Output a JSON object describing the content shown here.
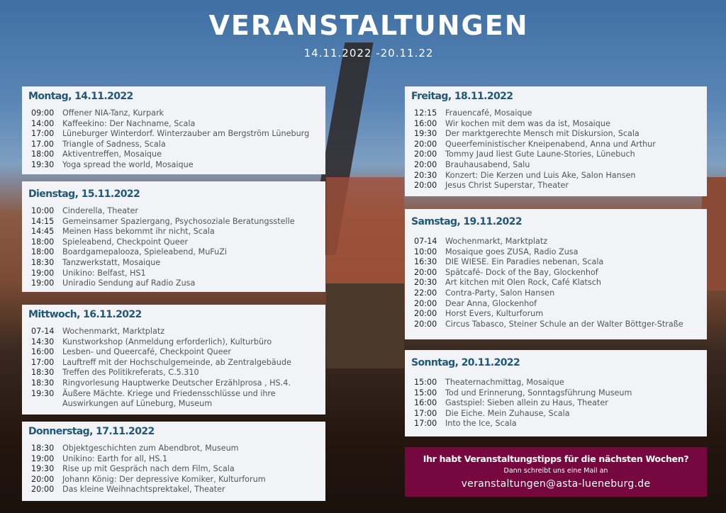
{
  "header": {
    "title": "VERANSTALTUNGEN",
    "date_range": "14.11.2022 -20.11.22"
  },
  "days": [
    {
      "label": "Montag, 14.11.2022",
      "events": [
        {
          "time": "09:00",
          "text": "Offener NIA-Tanz, Kurpark"
        },
        {
          "time": "14:00",
          "text": "Kaffeekino: Der Nachname, Scala"
        },
        {
          "time": "17:00",
          "text": "Lüneburger Winterdorf. Winterzauber am Bergström Lüneburg"
        },
        {
          "time": "17.00",
          "text": "Triangle of Sadness, Scala"
        },
        {
          "time": "18:00",
          "text": "Aktiventreffen, Mosaique"
        },
        {
          "time": "19:30",
          "text": "Yoga spread the world, Mosaique"
        }
      ]
    },
    {
      "label": "Dienstag, 15.11.2022",
      "events": [
        {
          "time": "10:00",
          "text": "Cinderella, Theater"
        },
        {
          "time": "14:15",
          "text": "Gemeinsamer Spaziergang, Psychosoziale Beratungsstelle"
        },
        {
          "time": "14:45",
          "text": "Meinen Hass bekommt ihr nicht, Scala"
        },
        {
          "time": "18:00",
          "text": "Spieleabend, Checkpoint Queer"
        },
        {
          "time": "18:00",
          "text": "Boardgamepalooza, Spieleabend, MuFuZi"
        },
        {
          "time": "18:30",
          "text": "Tanzwerkstatt, Mosaique"
        },
        {
          "time": "19:00",
          "text": "Unikino: Belfast, HS1"
        },
        {
          "time": "19:00",
          "text": "Uniradio Sendung auf Radio Zusa"
        }
      ]
    },
    {
      "label": "Mittwoch, 16.11.2022",
      "events": [
        {
          "time": "07-14",
          "text": "Wochenmarkt, Marktplatz"
        },
        {
          "time": "14:30",
          "text": "Kunstworkshop (Anmeldung erforderlich), Kulturbüro"
        },
        {
          "time": "16:00",
          "text": "Lesben- und Queercafé, Checkpoint Queer"
        },
        {
          "time": "17:00",
          "text": "Lauftreff mit der Hochschulgemeinde, ab Zentralgebäude"
        },
        {
          "time": "18:30",
          "text": "Treffen des Politikreferats, C.5.310"
        },
        {
          "time": "18:30",
          "text": "Ringvorlesung Hauptwerke Deutscher Erzählprosa , HS.4."
        },
        {
          "time": "19:30",
          "text": "Äußere Mächte. Kriege und Friedensschlüsse und ihre Auswirkungen auf Lüneburg, Museum"
        }
      ]
    },
    {
      "label": "Donnerstag, 17.11.2022",
      "events": [
        {
          "time": "18:30",
          "text": "Objektgeschichten zum Abendbrot, Museum"
        },
        {
          "time": "19:00",
          "text": "Unikino: Earth for all, HS.1"
        },
        {
          "time": "19:30",
          "text": "Rise up mit Gespräch nach dem Film, Scala"
        },
        {
          "time": "20:00",
          "text": "Johann König: Der depressive Komiker, Kulturforum"
        },
        {
          "time": "20:00",
          "text": "Das kleine Weihnachtsprektakel, Theater"
        }
      ]
    },
    {
      "label": "Freitag, 18.11.2022",
      "events": [
        {
          "time": "12:15",
          "text": "Frauencafé, Mosaique"
        },
        {
          "time": "16:00",
          "text": "Wir kochen mit dem was da ist, Mosaique"
        },
        {
          "time": "19:30",
          "text": "Der marktgerechte Mensch mit Diskursion, Scala"
        },
        {
          "time": "20:00",
          "text": "Queerfeministischer Kneipenabend, Anna und Arthur"
        },
        {
          "time": "20:00",
          "text": "Tommy Jaud liest Gute Laune-Stories, Lünebuch"
        },
        {
          "time": "20:00",
          "text": "Brauhausabend, Salu"
        },
        {
          "time": "20:30",
          "text": "Konzert: Die Kerzen und Luis Ake, Salon Hansen"
        },
        {
          "time": "20:00",
          "text": "Jesus Christ Superstar, Theater"
        }
      ]
    },
    {
      "label": "Samstag, 19.11.2022",
      "events": [
        {
          "time": "07-14",
          "text": "Wochenmarkt, Marktplatz"
        },
        {
          "time": "10:00",
          "text": "Mosaique goes ZUSA, Radio Zusa"
        },
        {
          "time": "16:30",
          "text": "DIE WIESE. Ein Paradies nebenan, Scala"
        },
        {
          "time": "20:00",
          "text": "Spätcafé- Dock of the Bay, Glockenhof"
        },
        {
          "time": "20:30",
          "text": "Art kitchen mit Olen Rock, Café Klatsch"
        },
        {
          "time": "22:00",
          "text": "Contra-Party, Salon Hansen"
        },
        {
          "time": "20:00",
          "text": "Dear Anna, Glockenhof"
        },
        {
          "time": "20:00",
          "text": "Horst Evers, Kulturforum"
        },
        {
          "time": "20:00",
          "text": "Circus Tabasco, Steiner Schule an der Walter Böttger-Straße"
        }
      ]
    },
    {
      "label": "Sonntag, 20.11.2022",
      "events": [
        {
          "time": "15:00",
          "text": "Theaternachmittag, Mosaique"
        },
        {
          "time": "15:00",
          "text": "Tod und Erinnerung, Sonntagsführung Museum"
        },
        {
          "time": "16:00",
          "text": "Gastspiel: Sieben allein zu Haus, Theater"
        },
        {
          "time": "17:00",
          "text": "Die Eiche. Mein Zuhause, Scala"
        },
        {
          "time": "17:00",
          "text": "Into the Ice, Scala"
        }
      ]
    }
  ],
  "tip": {
    "headline": "Ihr habt Veranstaltungstipps für die nächsten Wochen?",
    "subline": "Dann schreibt uns eine Mail an",
    "email": "veranstaltungen@asta-lueneburg.de"
  },
  "colors": {
    "day_heading": "#1f5878",
    "tip_background": "#76073f",
    "card_background": "#f1f3f7"
  }
}
